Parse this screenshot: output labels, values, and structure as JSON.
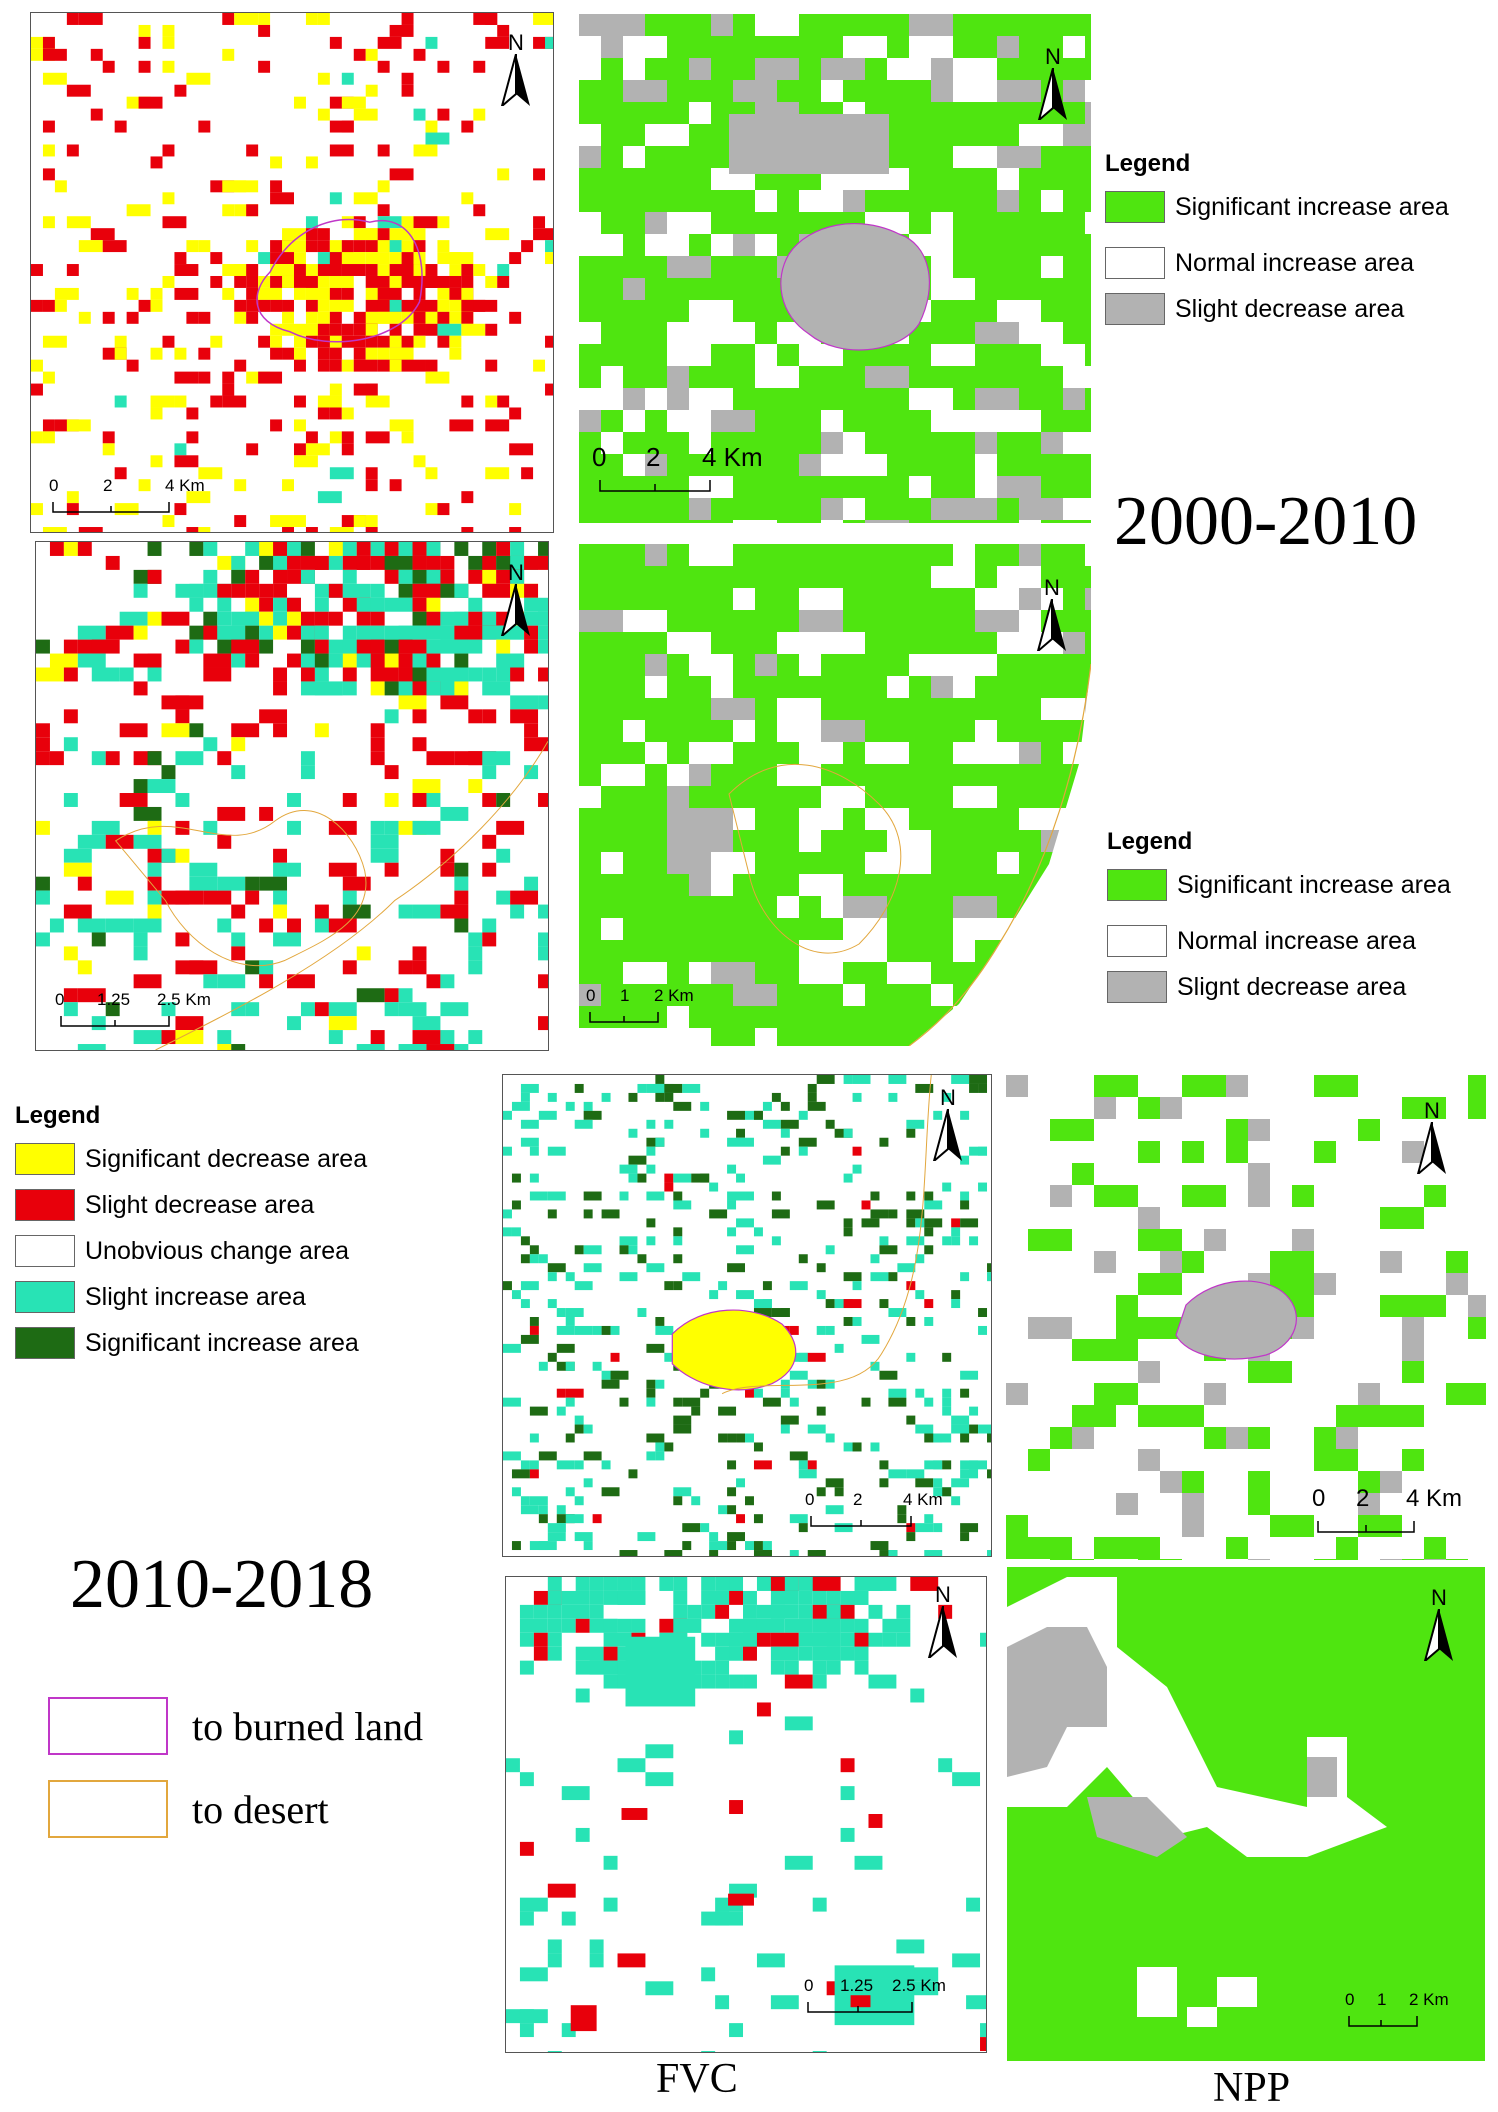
{
  "period_top": "2000-2010",
  "period_bottom": "2010-2018",
  "column_labels": {
    "fvc": "FVC",
    "npp": "NPP"
  },
  "north": "N",
  "colors": {
    "sig_increase_npp": "#4fe510",
    "normal_increase": "#ffffff",
    "slight_decrease_npp": "#b2b2b2",
    "sig_decrease_fvc": "#ffff00",
    "slight_decrease_fvc": "#e8000b",
    "slight_increase_fvc": "#28e3b5",
    "sig_increase_fvc": "#1e6b14",
    "burned_outline": "#c036c8",
    "desert_outline": "#e2a73d"
  },
  "npp_legend_top": {
    "title": "Legend",
    "items": [
      {
        "label": "Significant increase area",
        "color": "#4fe510"
      },
      {
        "label": "Normal increase area",
        "color": "#ffffff"
      },
      {
        "label": "Slight decrease area",
        "color": "#b2b2b2"
      }
    ]
  },
  "npp_legend_mid": {
    "title": "Legend",
    "items": [
      {
        "label": "Significant increase area",
        "color": "#4fe510"
      },
      {
        "label": "Normal increase area",
        "color": "#ffffff"
      },
      {
        "label": "Slignt decrease area",
        "color": "#b2b2b2"
      }
    ]
  },
  "fvc_legend": {
    "title": "Legend",
    "items": [
      {
        "label": "Significant decrease area",
        "color": "#ffff00"
      },
      {
        "label": "Slight decrease area",
        "color": "#e8000b"
      },
      {
        "label": "Unobvious change area",
        "color": "#ffffff"
      },
      {
        "label": "Slight increase area",
        "color": "#28e3b5"
      },
      {
        "label": "Significant increase area",
        "color": "#1e6b14"
      }
    ]
  },
  "overlay_legend": [
    {
      "label": "to burned land",
      "color": "#c036c8"
    },
    {
      "label": "to desert",
      "color": "#e2a73d"
    }
  ],
  "scales": {
    "a": [
      "0",
      "2",
      "4 Km"
    ],
    "b": [
      "0",
      "2",
      "4 Km"
    ],
    "c": [
      "0",
      "1.25",
      "2.5 Km"
    ],
    "d": [
      "0",
      "1",
      "2 Km"
    ],
    "e": [
      "0",
      "2",
      "4 Km"
    ],
    "f": [
      "0",
      "2",
      "4 Km"
    ],
    "g": [
      "0",
      "1.25",
      "2.5 Km"
    ],
    "h": [
      "0",
      "1",
      "2 Km"
    ]
  }
}
